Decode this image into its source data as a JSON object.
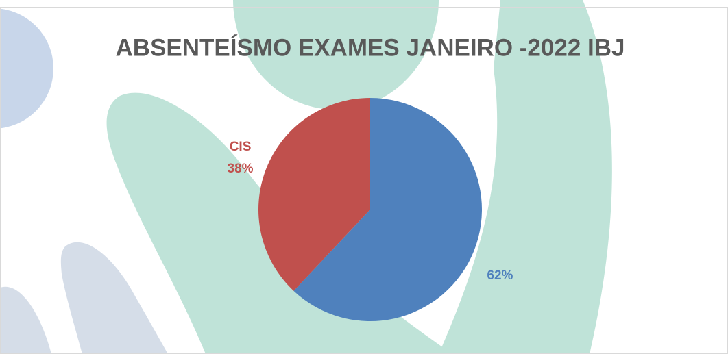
{
  "chart_data": {
    "type": "pie",
    "title": "ABSENTEÍSMO EXAMES JANEIRO -2022 IBJ",
    "categories": [
      null,
      "CIS"
    ],
    "values": [
      62,
      38
    ],
    "value_labels": [
      "62%",
      "38%"
    ],
    "colors": [
      "#4f81bd",
      "#c0504d"
    ]
  }
}
